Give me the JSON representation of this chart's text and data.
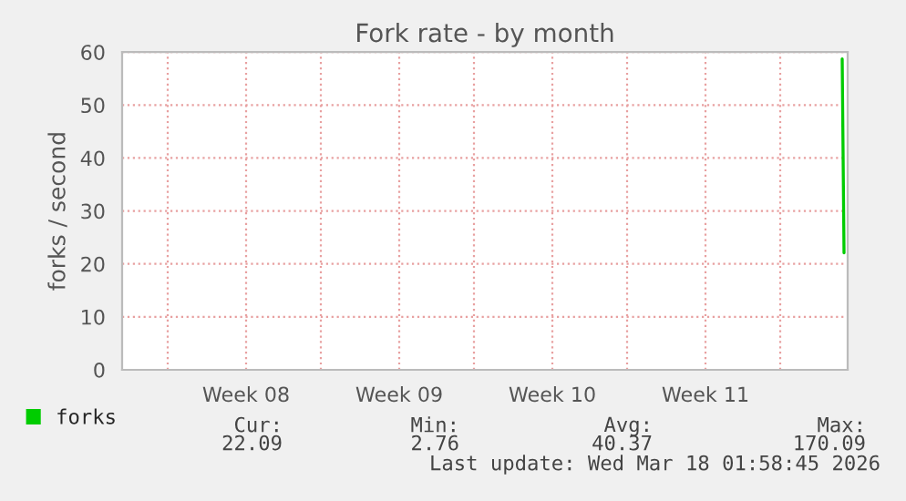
{
  "chart_data": {
    "type": "line",
    "title": "Fork rate - by month",
    "ylabel": "forks / second",
    "x": [
      "2026-03-18T20:00",
      "2026-03-18T22:00"
    ],
    "series": [
      {
        "name": "forks",
        "color": "#00cc00",
        "values": [
          58.7,
          22.09
        ]
      }
    ],
    "xlim": [
      "2026-02-13T22:00",
      "2026-03-19T02:00"
    ],
    "xticks": [
      {
        "value": "2026-02-16T00:00",
        "label": null
      },
      {
        "value": "2026-02-19T14:00",
        "label": "Week 08"
      },
      {
        "value": "2026-02-23T00:00",
        "label": null
      },
      {
        "value": "2026-02-26T14:00",
        "label": "Week 09"
      },
      {
        "value": "2026-03-02T00:00",
        "label": null
      },
      {
        "value": "2026-03-05T14:00",
        "label": "Week 10"
      },
      {
        "value": "2026-03-09T00:00",
        "label": null
      },
      {
        "value": "2026-03-12T14:00",
        "label": "Week 11"
      },
      {
        "value": "2026-03-16T00:00",
        "label": null
      }
    ],
    "ylim": [
      0,
      60
    ],
    "yticks": [
      0,
      10,
      20,
      30,
      40,
      50,
      60
    ],
    "grid": true,
    "legend": "bottom left",
    "annotations": [
      "Cur:",
      "Min:",
      "Avg:",
      "Max:",
      "22.09",
      "2.76",
      "40.37",
      "170.09",
      "Last update: Wed Mar 18 01:58:45 2026"
    ]
  }
}
